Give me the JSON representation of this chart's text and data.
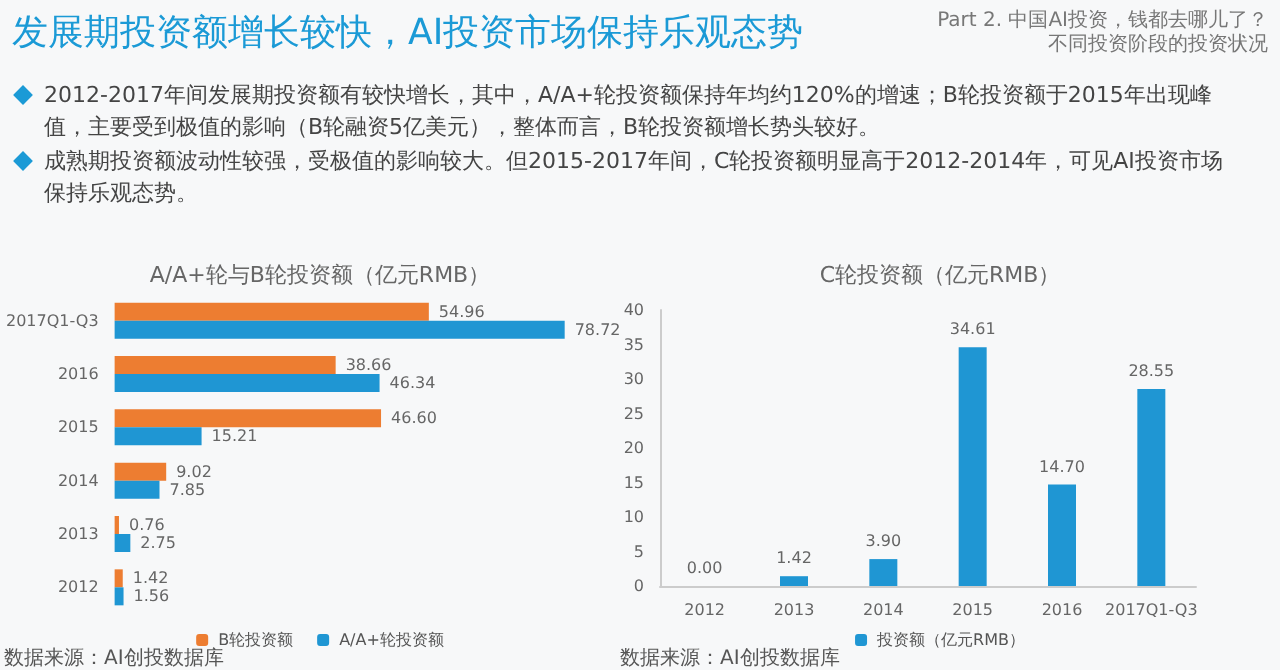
{
  "chart_data": [
    {
      "type": "bar",
      "orientation": "horizontal",
      "title": "A/A+轮与B轮投资额（亿元RMB）",
      "annotations": [
        "发展期投资额增长较快，AI投资市场保持乐观态势",
        "Part 2. 中国AI投资，钱都去哪儿了？",
        "不同投资阶段的投资状况",
        "2012-2017年间发展期投资额有较快增长，其中，A/A+轮投资额保持年均约120%的增速；B轮投资额于2015年出现峰值，主要受到极值的影响（B轮融资5亿美元），整体而言，B轮投资额增长势头较好。",
        "成熟期投资额波动性较强，受极值的影响较大。但2015-2017年间，C轮投资额明显高于2012-2014年，可见AI投资市场保持乐观态势。",
        "数据来源：AI创投数据库"
      ],
      "categories": [
        "2017Q1-Q3",
        "2016",
        "2015",
        "2014",
        "2013",
        "2012"
      ],
      "series": [
        {
          "name": "B轮投资额",
          "color": "#ed7d31",
          "values": [
            54.96,
            38.66,
            46.6,
            9.02,
            0.76,
            1.42
          ],
          "value_labels": [
            "54.96",
            "38.66",
            "46.60",
            "9.02",
            "0.76",
            "1.42"
          ]
        },
        {
          "name": "A/A+轮投资额",
          "color": "#1f96d3",
          "values": [
            78.72,
            46.34,
            15.21,
            7.85,
            2.75,
            1.56
          ],
          "value_labels": [
            "78.72",
            "46.34",
            "15.21",
            "7.85",
            "2.75",
            "1.56"
          ]
        }
      ],
      "legend": "bottom",
      "grid": false
    },
    {
      "type": "bar",
      "title": "C轮投资额（亿元RMB）",
      "annotations": [
        "数据来源：AI创投数据库"
      ],
      "categories": [
        "2012",
        "2013",
        "2014",
        "2015",
        "2016",
        "2017Q1-Q3"
      ],
      "series": [
        {
          "name": "投资额（亿元RMB）",
          "color": "#1f96d3",
          "values": [
            0.0,
            1.42,
            3.9,
            34.61,
            14.7,
            28.55
          ],
          "value_labels": [
            "0.00",
            "1.42",
            "3.90",
            "34.61",
            "14.70",
            "28.55"
          ]
        }
      ],
      "ylim": [
        0,
        40
      ],
      "yticks": [
        0,
        5,
        10,
        15,
        20,
        25,
        30,
        35,
        40
      ],
      "legend": "bottom",
      "grid": false
    }
  ]
}
